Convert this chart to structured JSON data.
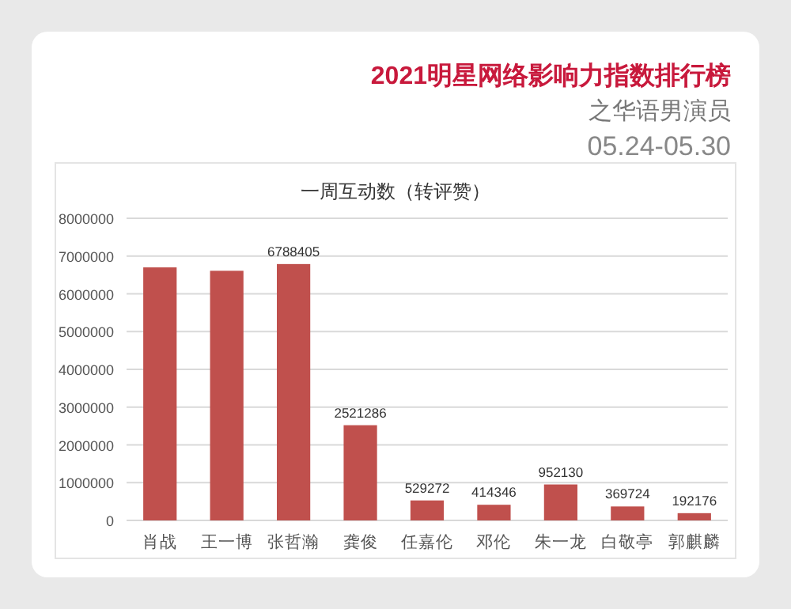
{
  "chart_data": {
    "type": "bar",
    "title": "2021明星网络影响力指数排行榜",
    "subtitle": "之华语男演员",
    "annotations": [
      "05.24-05.30",
      "一周互动数（转评赞）"
    ],
    "categories": [
      "肖战",
      "王一博",
      "张哲瀚",
      "龚俊",
      "任嘉伦",
      "邓伦",
      "朱一龙",
      "白敬亭",
      "郭麒麟"
    ],
    "values": [
      6700000,
      6610000,
      6788405,
      2521286,
      529272,
      414346,
      952130,
      369724,
      192176
    ],
    "value_labels": [
      null,
      null,
      "6788405",
      "2521286",
      "529272",
      "414346",
      "952130",
      "369724",
      "192176"
    ],
    "color": "#c0504d",
    "ylim": [
      0,
      8000000
    ],
    "yticks": [
      0,
      1000000,
      2000000,
      3000000,
      4000000,
      5000000,
      6000000,
      7000000,
      8000000
    ],
    "grid": "y"
  }
}
